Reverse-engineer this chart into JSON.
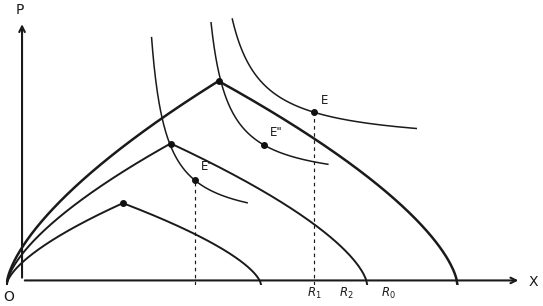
{
  "figsize": [
    5.43,
    3.06
  ],
  "dpi": 100,
  "bg_color": "#ffffff",
  "curve_color": "#1a1a1a",
  "lw": 1.4,
  "lw_thin": 1.1,
  "lw_thick": 1.8,
  "xlim": [
    0,
    10
  ],
  "ylim": [
    0,
    10
  ],
  "xlabel": "X",
  "ylabel": "P",
  "origin_label": "O",
  "ppf1": {
    "x_end": 4.8,
    "peak_x": 2.2,
    "peak_y": 3.0
  },
  "ppf2": {
    "x_end": 6.8,
    "peak_x": 3.1,
    "peak_y": 5.2
  },
  "ppf3": {
    "x_end": 8.5,
    "peak_x": 4.0,
    "peak_y": 7.5
  },
  "E_prime_x": 3.55,
  "E_prime_y": 3.85,
  "E_double_prime_x": 4.85,
  "E_double_prime_y": 5.15,
  "E_x": 5.8,
  "E_y": 6.35,
  "R1_x": 5.8,
  "R2_x": 6.4,
  "R0_x": 7.2,
  "dot_color": "#111111",
  "dot_size": 4
}
